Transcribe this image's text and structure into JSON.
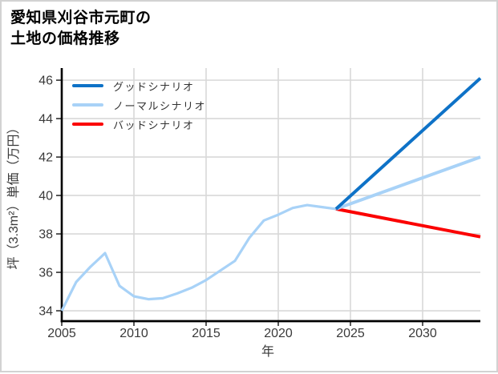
{
  "chart_data": {
    "type": "line",
    "title": "愛知県刈谷市元町の土地の価格推移",
    "title_lines": [
      "愛知県刈谷市元町の",
      "土地の価格推移"
    ],
    "xlabel": "年",
    "ylabel": "坪（3.3m²）単価（万円）",
    "xlim": [
      2005,
      2034
    ],
    "ylim": [
      33.46,
      46.63
    ],
    "xticks": [
      2005,
      2010,
      2015,
      2020,
      2025,
      2030
    ],
    "yticks": [
      34,
      36,
      38,
      40,
      42,
      44,
      46
    ],
    "grid": true,
    "legend_position": "top-left",
    "colors": {
      "good": "#0e72c7",
      "normal": "#a8d2f7",
      "bad": "#fb0000",
      "grid": "#d8d8d8",
      "axis": "#000000",
      "tick_label": "#3a3a3a"
    },
    "series": [
      {
        "name": "グッドシナリオ",
        "color": "#0e72c7",
        "width": 4,
        "in_legend": true,
        "x": [
          2024,
          2034
        ],
        "y": [
          39.3,
          46.1
        ]
      },
      {
        "name": "ノーマルシナリオ",
        "color": "#a8d2f7",
        "width": 4,
        "in_legend": true,
        "x": [
          2024,
          2034
        ],
        "y": [
          39.3,
          42.0
        ]
      },
      {
        "name": "バッドシナリオ",
        "color": "#fb0000",
        "width": 4,
        "in_legend": true,
        "x": [
          2024,
          2034
        ],
        "y": [
          39.3,
          37.85
        ]
      },
      {
        "color": "#a8d2f7",
        "width": 3.2,
        "in_legend": false,
        "x": [
          2005,
          2006,
          2007,
          2008,
          2009,
          2010,
          2011,
          2012,
          2013,
          2014,
          2015,
          2016,
          2017,
          2018,
          2019,
          2020,
          2021,
          2022,
          2023,
          2024
        ],
        "y": [
          34.0,
          35.5,
          36.3,
          37.0,
          35.3,
          34.75,
          34.6,
          34.65,
          34.9,
          35.2,
          35.6,
          36.1,
          36.6,
          37.8,
          38.7,
          39.0,
          39.35,
          39.5,
          39.4,
          39.3
        ]
      }
    ]
  }
}
